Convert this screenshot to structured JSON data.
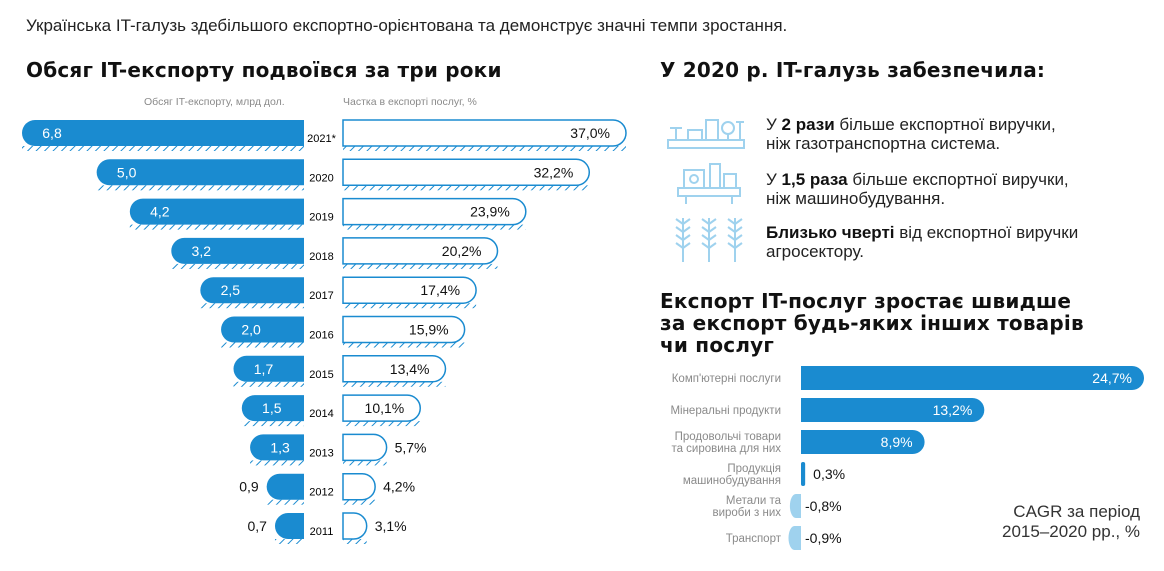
{
  "intro": "Українська IT-галузь здебільшого експортно-орієнтована та демонструє значні темпи зростання.",
  "left": {
    "title": "Обсяг IT-експорту подвоївся за три роки",
    "col_left": "Обсяг IT-експорту, млрд дол.",
    "col_right": "Частка в експорті послуг, %"
  },
  "right": {
    "title": "У 2020 р. IT-галузь забезпечила:",
    "facts": [
      {
        "pre": "У ",
        "bold": "2 рази",
        "line1_rest": " більше експортної виручки,",
        "line2": "ніж газотранспортна система.",
        "icon": "gas-pipeline-icon"
      },
      {
        "pre": "У ",
        "bold": "1,5 раза",
        "line1_rest": " більше експортної виручки,",
        "line2": "ніж машинобудування.",
        "icon": "machine-tool-icon"
      },
      {
        "pre": "",
        "bold": "Близько чверті",
        "line1_rest": " від експортної виручки",
        "line2": "агросектору.",
        "icon": "wheat-icon"
      }
    ],
    "cagr_title_1": "Експорт IT-послуг зростає швидше",
    "cagr_title_2": "за експорт будь-яких інших товарів",
    "cagr_title_3": "чи послуг",
    "cagr_note_1": "CAGR за період",
    "cagr_note_2": "2015–2020 рр., %"
  },
  "colors": {
    "accent": "#1a8bd0",
    "accent_light": "#9fd2ee",
    "hatch": "#1a8bd0",
    "text_muted": "#8a8a8a"
  },
  "chart_data": [
    {
      "type": "bar",
      "title": "Обсяг IT-експорту подвоївся за три роки",
      "categories": [
        "2021*",
        "2020",
        "2019",
        "2018",
        "2017",
        "2016",
        "2015",
        "2014",
        "2013",
        "2012",
        "2011"
      ],
      "series": [
        {
          "name": "Обсяг IT-експорту, млрд дол.",
          "values": [
            6.8,
            5.0,
            4.2,
            3.2,
            2.5,
            2.0,
            1.7,
            1.5,
            1.3,
            0.9,
            0.7
          ],
          "labels": [
            "6,8",
            "5,0",
            "4,2",
            "3,2",
            "2,5",
            "2,0",
            "1,7",
            "1,5",
            "1,3",
            "0,9",
            "0,7"
          ]
        },
        {
          "name": "Частка в експорті послуг, %",
          "values": [
            37.0,
            32.2,
            23.9,
            20.2,
            17.4,
            15.9,
            13.4,
            10.1,
            5.7,
            4.2,
            3.1
          ],
          "labels": [
            "37,0%",
            "32,2%",
            "23,9%",
            "20,2%",
            "17,4%",
            "15,9%",
            "13,4%",
            "10,1%",
            "5,7%",
            "4,2%",
            "3,1%"
          ]
        }
      ]
    },
    {
      "type": "bar",
      "title": "Експорт IT-послуг зростає швидше за експорт будь-яких інших товарів чи послуг",
      "categories": [
        [
          "Комп'ютерні послуги"
        ],
        [
          "Мінеральні продукти"
        ],
        [
          "Продовольчі товари",
          "та сировина для них"
        ],
        [
          "Продукція",
          "машинобудування"
        ],
        [
          "Метали та",
          "вироби з них"
        ],
        [
          "Транспорт"
        ]
      ],
      "values": [
        24.7,
        13.2,
        8.9,
        0.3,
        -0.8,
        -0.9
      ],
      "labels": [
        "24,7%",
        "13,2%",
        "8,9%",
        "0,3%",
        "-0,8%",
        "-0,9%"
      ]
    }
  ]
}
